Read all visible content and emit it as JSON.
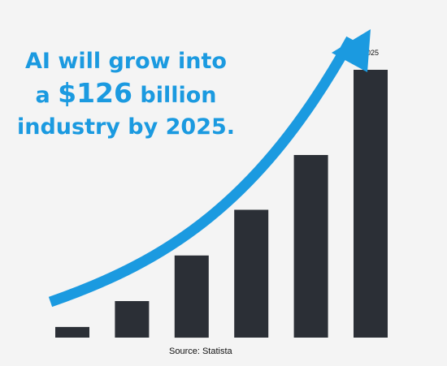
{
  "headline": {
    "line1": "AI will grow into",
    "line2_prefix": "a ",
    "line2_amount": "$126",
    "line2_suffix": " billion",
    "line3": "industry by 2025."
  },
  "source_label": "Source: Statista",
  "colors": {
    "accent": "#1b9ae0",
    "bar": "#2b2f36",
    "background": "#f4f4f4"
  },
  "chart_data": {
    "type": "bar",
    "categories": [
      "",
      "",
      "",
      "",
      "",
      "2025"
    ],
    "values": [
      3.5,
      12,
      27,
      42,
      60,
      88
    ],
    "value_units": "relative",
    "title": "",
    "xlabel": "",
    "ylabel": "",
    "ylim": [
      0,
      100
    ],
    "grid": false,
    "legend": "none",
    "annotation": "upward-trend-arrow"
  }
}
